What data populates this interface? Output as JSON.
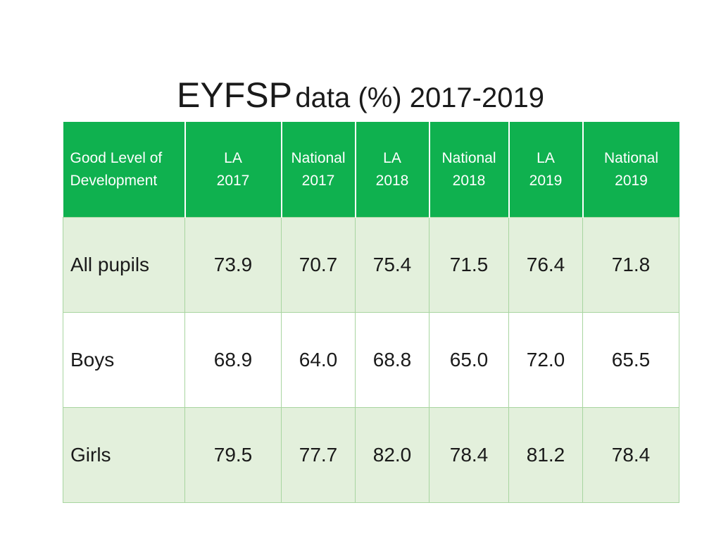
{
  "title": {
    "main": "EYFSP",
    "rest": "data (%) 2017-2019"
  },
  "table": {
    "headers": [
      {
        "line1": "Good Level of",
        "line2": "Development"
      },
      {
        "line1": "LA",
        "line2": "2017"
      },
      {
        "line1": "National",
        "line2": "2017"
      },
      {
        "line1": "LA",
        "line2": "2018"
      },
      {
        "line1": "National",
        "line2": "2018"
      },
      {
        "line1": "LA",
        "line2": "2019"
      },
      {
        "line1": "National",
        "line2": "2019"
      }
    ],
    "rows": [
      {
        "label": "All pupils",
        "values": [
          "73.9",
          "70.7",
          "75.4",
          "71.5",
          "76.4",
          "71.8"
        ]
      },
      {
        "label": "Boys",
        "values": [
          "68.9",
          "64.0",
          "68.8",
          "65.0",
          "72.0",
          "65.5"
        ]
      },
      {
        "label": "Girls",
        "values": [
          "79.5",
          "77.7",
          "82.0",
          "78.4",
          "81.2",
          "78.4"
        ]
      }
    ]
  },
  "colors": {
    "header_bg": "#0fb14f",
    "row_shaded": "#e3f0dc",
    "row_plain": "#ffffff"
  }
}
